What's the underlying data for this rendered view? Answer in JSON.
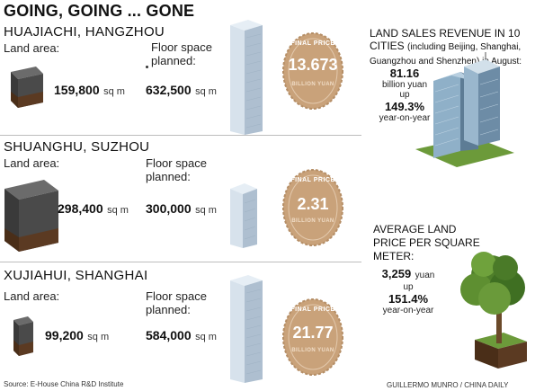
{
  "title": "GOING, GOING ... GONE",
  "labels": {
    "land_area": "Land area:",
    "floor_space": "Floor space planned:",
    "final_price": "FINAL PRICE",
    "billion_yuan": "BILLION YUAN"
  },
  "sections": [
    {
      "name": "HUAJIACHI, HANGZHOU",
      "land_area": "159,800",
      "land_unit": "sq m",
      "floor_space": "632,500",
      "floor_unit": "sq m",
      "final_price": "13.673"
    },
    {
      "name": "SHUANGHU, SUZHOU",
      "land_area": "298,400",
      "land_unit": "sq m",
      "floor_space": "300,000",
      "floor_unit": "sq m",
      "final_price": "2.31"
    },
    {
      "name": "XUJIAHUI, SHANGHAI",
      "land_area": "99,200",
      "land_unit": "sq m",
      "floor_space": "584,000",
      "floor_unit": "sq m",
      "final_price": "21.77"
    }
  ],
  "revenue": {
    "head": "LAND SALES REVENUE IN 10 CITIES",
    "sub": "(including Beijing, Shanghai, Guangzhou and Shenzhen) in August:",
    "value": "81.16",
    "unit": "billion yuan",
    "up": "up",
    "pct": "149.3%",
    "yoy": "year-on-year"
  },
  "avg_price": {
    "head": "AVERAGE LAND PRICE PER SQUARE METER:",
    "value": "3,259",
    "unit": "yuan",
    "up": "up",
    "pct": "151.4%",
    "yoy": "year-on-year"
  },
  "footer": {
    "source": "Source: E-House China R&D Institute",
    "credit": "GUILLERMO MUNRO / CHINA DAILY"
  },
  "colors": {
    "seal": "#c9a27a",
    "soil": "#5b3a22",
    "grass": "#6c9a3a",
    "glass": "#c7d7e6"
  }
}
